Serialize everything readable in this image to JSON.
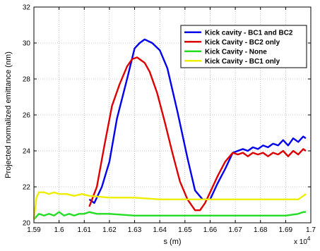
{
  "chart_data": {
    "type": "line",
    "title": "",
    "xlabel": "s (m)",
    "ylabel": "Projected normalized emittance (nm)",
    "x_multiplier_label": "x 10",
    "x_multiplier_exponent": "4",
    "xlim": [
      1.59,
      1.7
    ],
    "ylim": [
      20,
      32
    ],
    "x_ticks": [
      "1.59",
      "1.6",
      "1.61",
      "1.62",
      "1.63",
      "1.64",
      "1.65",
      "1.66",
      "1.67",
      "1.68",
      "1.69",
      "1.7"
    ],
    "y_ticks": [
      "20",
      "22",
      "24",
      "26",
      "28",
      "30",
      "32"
    ],
    "grid": true,
    "legend_position": "top-right",
    "series": [
      {
        "name": "Kick cavity - BC1 and BC2",
        "color": "#0000ee",
        "x": [
          1.612,
          1.614,
          1.617,
          1.62,
          1.623,
          1.627,
          1.63,
          1.632,
          1.634,
          1.637,
          1.64,
          1.643,
          1.647,
          1.651,
          1.654,
          1.657,
          1.66,
          1.663,
          1.666,
          1.669,
          1.671,
          1.673,
          1.675,
          1.677,
          1.679,
          1.681,
          1.683,
          1.685,
          1.687,
          1.689,
          1.691,
          1.693,
          1.695,
          1.697,
          1.698
        ],
        "y": [
          21.3,
          21.1,
          22.0,
          23.4,
          25.8,
          28.0,
          29.7,
          30.0,
          30.2,
          30.0,
          29.6,
          28.6,
          26.2,
          23.6,
          21.8,
          21.3,
          21.3,
          22.2,
          23.0,
          23.9,
          24.0,
          24.1,
          24.0,
          24.2,
          24.1,
          24.3,
          24.2,
          24.4,
          24.3,
          24.6,
          24.3,
          24.7,
          24.5,
          24.8,
          24.7
        ]
      },
      {
        "name": "Kick Cavity - BC2 only",
        "color": "#dd0000",
        "x": [
          1.612,
          1.615,
          1.618,
          1.621,
          1.624,
          1.627,
          1.629,
          1.631,
          1.634,
          1.636,
          1.639,
          1.642,
          1.645,
          1.648,
          1.651,
          1.654,
          1.656,
          1.658,
          1.66,
          1.663,
          1.666,
          1.669,
          1.671,
          1.673,
          1.675,
          1.677,
          1.679,
          1.681,
          1.683,
          1.685,
          1.687,
          1.689,
          1.691,
          1.693,
          1.695,
          1.697,
          1.698
        ],
        "y": [
          20.9,
          22.0,
          24.3,
          26.5,
          27.7,
          28.7,
          29.1,
          29.2,
          28.9,
          28.4,
          27.2,
          25.6,
          23.9,
          22.3,
          21.3,
          20.7,
          20.7,
          21.1,
          21.7,
          22.6,
          23.4,
          23.9,
          23.8,
          23.9,
          23.7,
          23.9,
          23.8,
          23.9,
          23.7,
          23.9,
          23.8,
          24.0,
          23.7,
          24.0,
          23.8,
          24.1,
          24.0
        ]
      },
      {
        "name": "Kick Cavity - None",
        "color": "#22dd22",
        "x": [
          1.59,
          1.592,
          1.594,
          1.596,
          1.598,
          1.6,
          1.602,
          1.604,
          1.606,
          1.608,
          1.61,
          1.612,
          1.615,
          1.62,
          1.63,
          1.64,
          1.65,
          1.66,
          1.67,
          1.68,
          1.69,
          1.695,
          1.697,
          1.698
        ],
        "y": [
          20.2,
          20.5,
          20.4,
          20.5,
          20.4,
          20.6,
          20.4,
          20.5,
          20.4,
          20.5,
          20.5,
          20.6,
          20.5,
          20.5,
          20.4,
          20.4,
          20.4,
          20.4,
          20.4,
          20.4,
          20.4,
          20.5,
          20.6,
          20.6
        ]
      },
      {
        "name": "Kick Cavity - BC1 only",
        "color": "#eeee00",
        "x": [
          1.59,
          1.591,
          1.592,
          1.594,
          1.596,
          1.598,
          1.6,
          1.603,
          1.606,
          1.609,
          1.612,
          1.62,
          1.63,
          1.64,
          1.65,
          1.66,
          1.67,
          1.68,
          1.69,
          1.695,
          1.697,
          1.698
        ],
        "y": [
          20.2,
          21.4,
          21.7,
          21.7,
          21.6,
          21.7,
          21.6,
          21.6,
          21.5,
          21.6,
          21.5,
          21.4,
          21.4,
          21.3,
          21.3,
          21.3,
          21.3,
          21.3,
          21.3,
          21.3,
          21.5,
          21.6
        ]
      }
    ]
  }
}
